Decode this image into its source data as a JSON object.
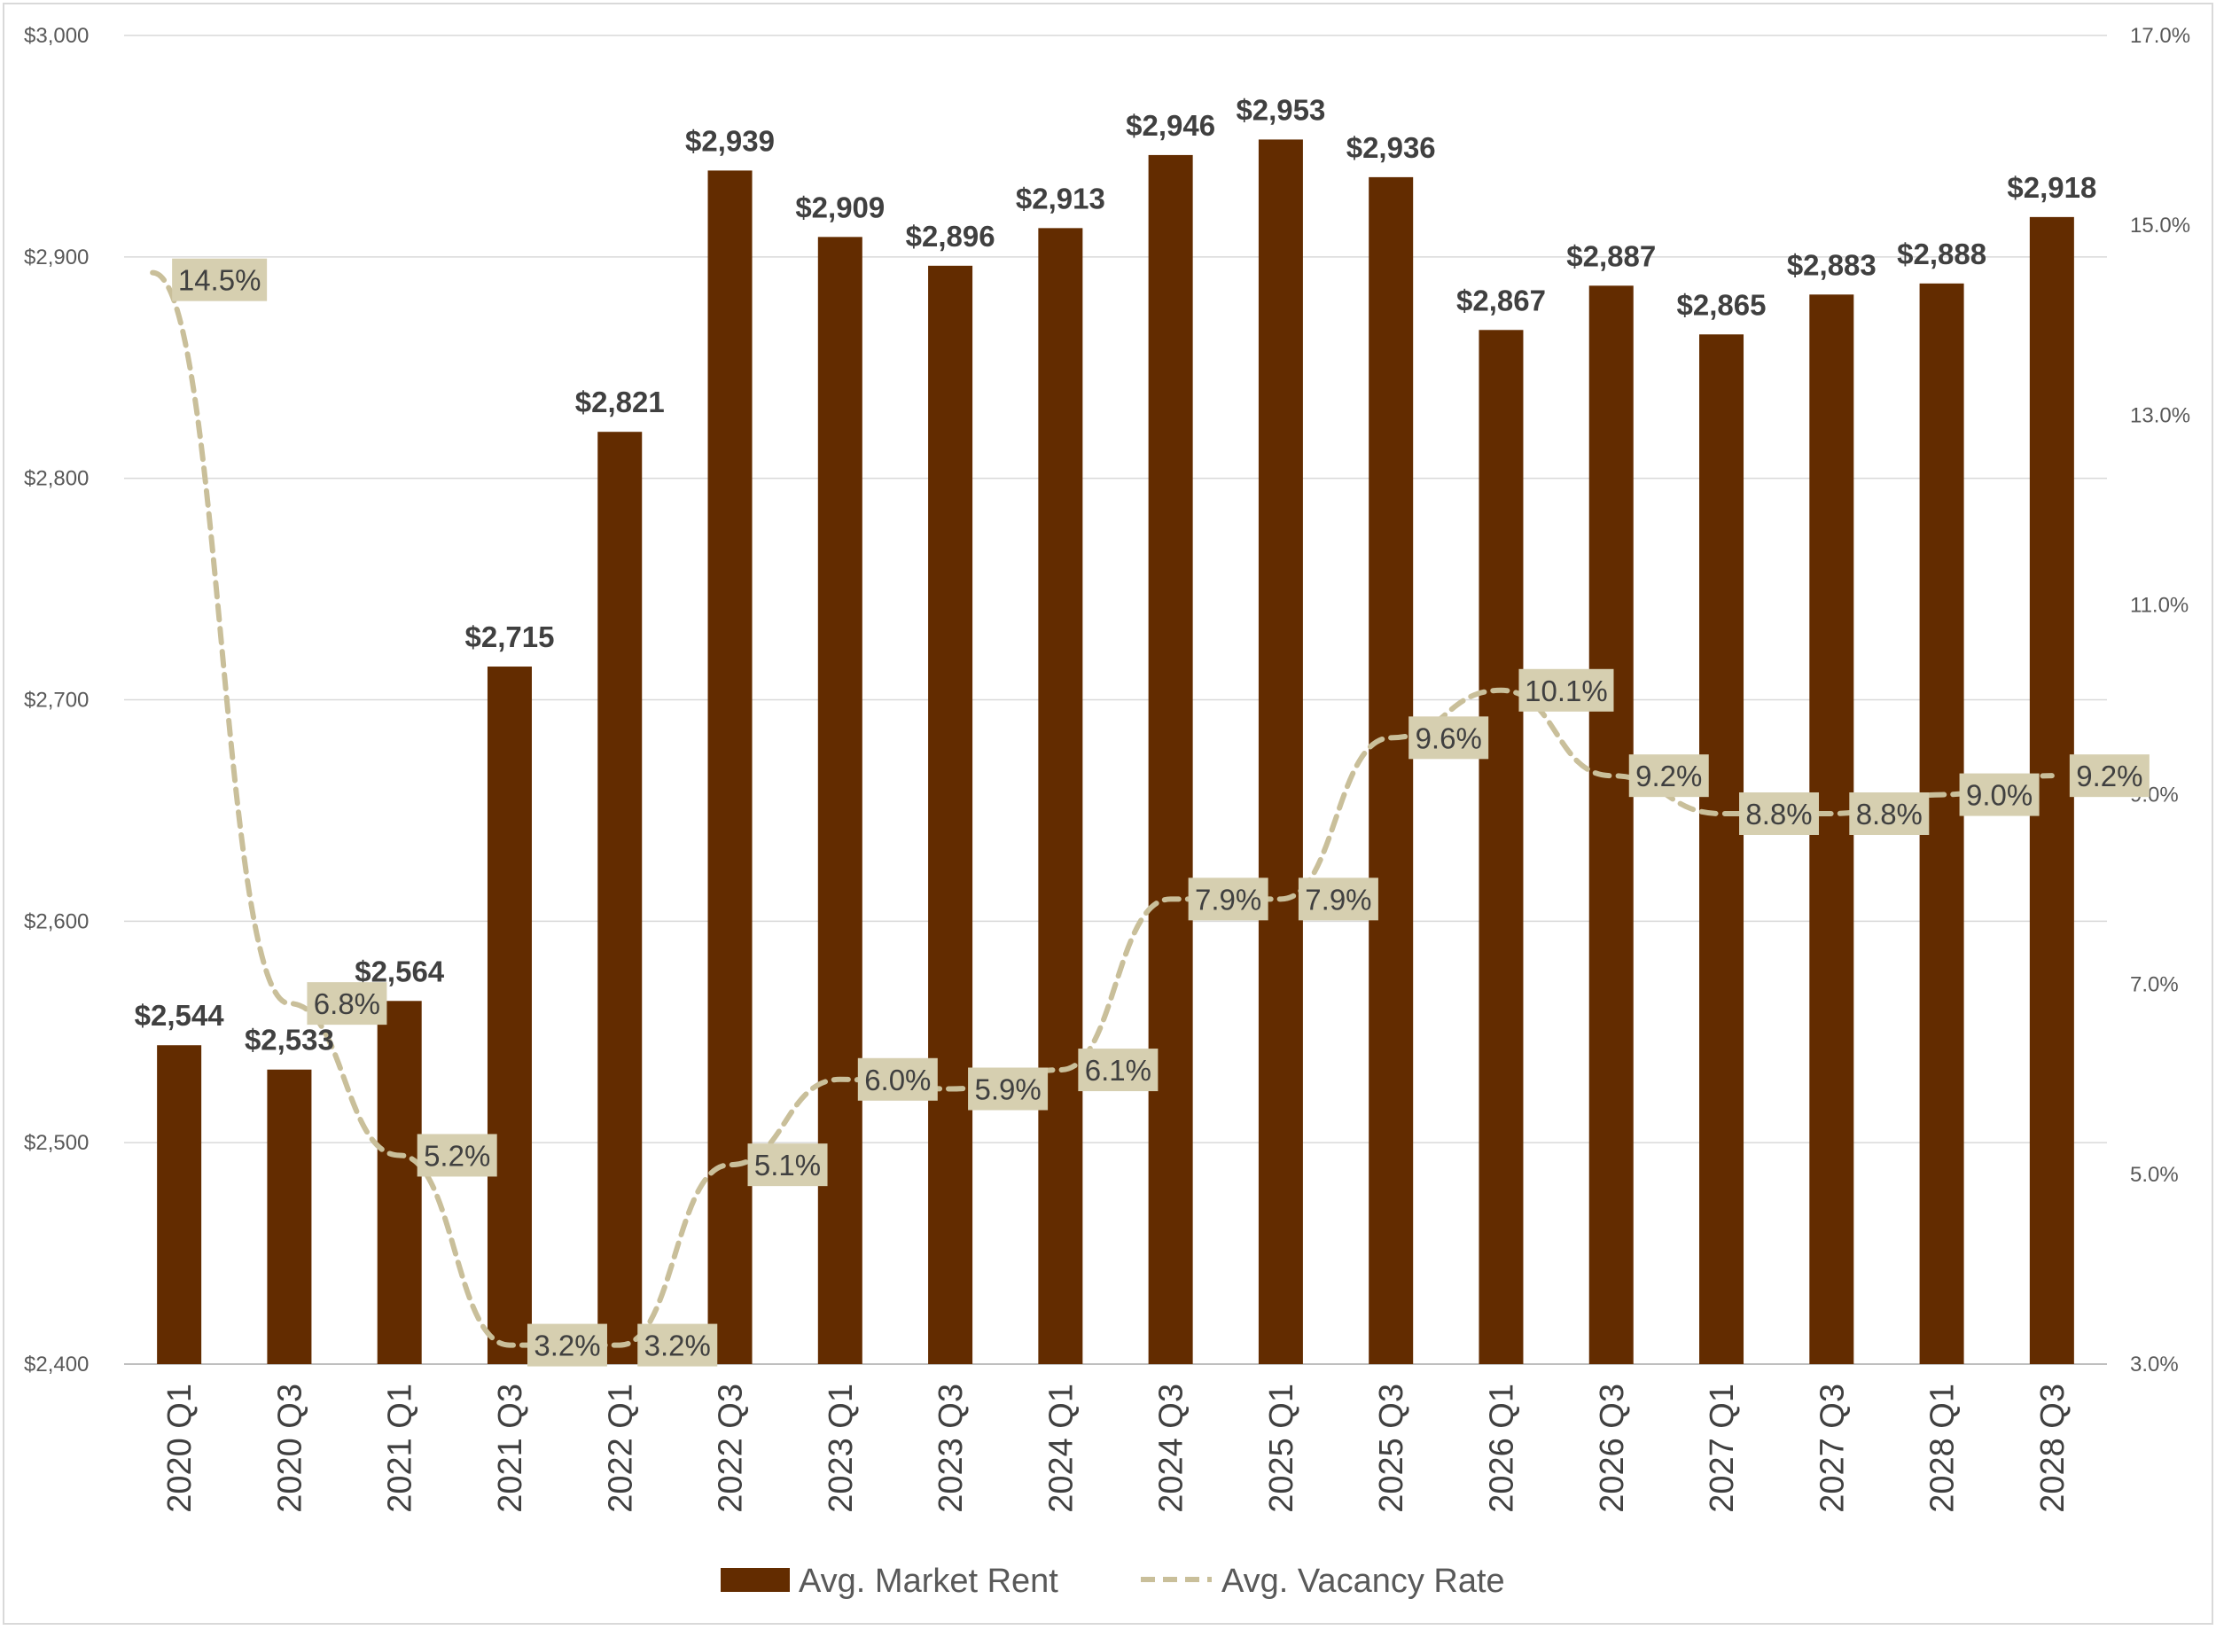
{
  "chart_data": {
    "type": "bar",
    "categories": [
      "2020 Q1",
      "2020 Q3",
      "2021 Q1",
      "2021 Q3",
      "2022 Q1",
      "2022 Q3",
      "2023 Q1",
      "2023 Q3",
      "2024 Q1",
      "2024 Q3",
      "2025 Q1",
      "2025 Q3",
      "2026 Q1",
      "2026 Q3",
      "2027 Q1",
      "2027 Q3",
      "2028 Q1",
      "2028 Q3"
    ],
    "series": [
      {
        "name": "Avg. Market Rent",
        "type": "bar",
        "axis": "left",
        "color": "#632c00",
        "values": [
          2544,
          2533,
          2564,
          2715,
          2821,
          2939,
          2909,
          2896,
          2913,
          2946,
          2953,
          2936,
          2867,
          2887,
          2865,
          2883,
          2888,
          2918
        ],
        "labels": [
          "$2,544",
          "$2,533",
          "$2,564",
          "$2,715",
          "$2,821",
          "$2,939",
          "$2,909",
          "$2,896",
          "$2,913",
          "$2,946",
          "$2,953",
          "$2,936",
          "$2,867",
          "$2,887",
          "$2,865",
          "$2,883",
          "$2,888",
          "$2,918"
        ]
      },
      {
        "name": "Avg. Vacancy Rate",
        "type": "line",
        "style": "dashed",
        "axis": "right",
        "color": "#c9bf9a",
        "label_bg": "#d6cfb0",
        "values": [
          14.5,
          6.8,
          5.2,
          3.2,
          3.2,
          5.1,
          6.0,
          5.9,
          6.1,
          7.9,
          7.9,
          9.6,
          10.1,
          9.2,
          8.8,
          8.8,
          9.0,
          9.2
        ],
        "labels": [
          "14.5%",
          "6.8%",
          "5.2%",
          "3.2%",
          "3.2%",
          "5.1%",
          "6.0%",
          "5.9%",
          "6.1%",
          "7.9%",
          "7.9%",
          "9.6%",
          "10.1%",
          "9.2%",
          "8.8%",
          "8.8%",
          "9.0%",
          "9.2%"
        ]
      }
    ],
    "y_left": {
      "min": 2400,
      "max": 3000,
      "ticks": [
        2400,
        2500,
        2600,
        2700,
        2800,
        2900,
        3000
      ],
      "tick_labels": [
        "$2,400",
        "$2,500",
        "$2,600",
        "$2,700",
        "$2,800",
        "$2,900",
        "$3,000"
      ]
    },
    "y_right": {
      "min": 3.0,
      "max": 17.0,
      "ticks": [
        3,
        5,
        7,
        9,
        11,
        13,
        15,
        17
      ],
      "tick_labels": [
        "3.0%",
        "5.0%",
        "7.0%",
        "9.0%",
        "11.0%",
        "13.0%",
        "15.0%",
        "17.0%"
      ]
    },
    "grid": "horizontal",
    "legend_position": "bottom"
  }
}
